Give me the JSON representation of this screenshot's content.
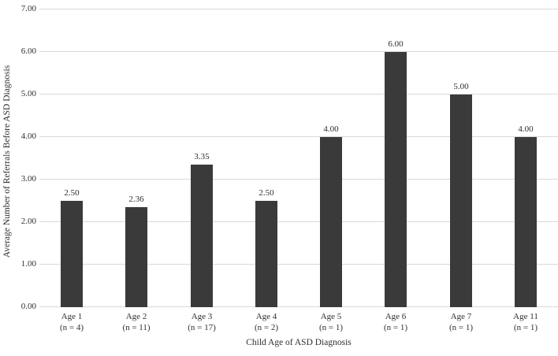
{
  "chart_data": {
    "type": "bar",
    "title": "",
    "xlabel": "Child Age of ASD Diagnosis",
    "ylabel": "Average Number of Referrals Before ASD Diagnosis",
    "categories": [
      "Age 1",
      "Age 2",
      "Age 3",
      "Age 4",
      "Age 5",
      "Age 6",
      "Age 7",
      "Age 11"
    ],
    "category_sublabels": [
      "(n = 4)",
      "(n = 11)",
      "(n = 17)",
      "(n = 2)",
      "(n = 1)",
      "(n = 1)",
      "(n = 1)",
      "(n = 1)"
    ],
    "values": [
      2.5,
      2.36,
      3.35,
      2.5,
      4.0,
      6.0,
      5.0,
      4.0
    ],
    "value_labels": [
      "2.50",
      "2.36",
      "3.35",
      "2.50",
      "4.00",
      "6.00",
      "5.00",
      "4.00"
    ],
    "ylim": [
      0,
      7
    ],
    "ytick_labels": [
      "0.00",
      "1.00",
      "2.00",
      "3.00",
      "4.00",
      "5.00",
      "6.00",
      "7.00"
    ],
    "grid": true,
    "legend": "none",
    "bar_color": "#3a3a3a",
    "gridline_color": "#d9d9d9",
    "text_color": "#2e2e2e"
  }
}
